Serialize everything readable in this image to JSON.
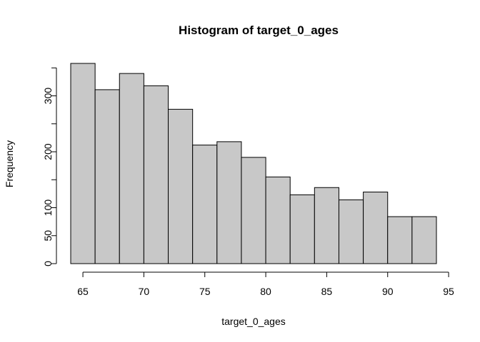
{
  "chart_data": {
    "type": "bar",
    "title": "Histogram of target_0_ages",
    "xlabel": "target_0_ages",
    "ylabel": "Frequency",
    "bins": [
      {
        "start": 64,
        "end": 66,
        "value": 358
      },
      {
        "start": 66,
        "end": 68,
        "value": 311
      },
      {
        "start": 68,
        "end": 70,
        "value": 340
      },
      {
        "start": 70,
        "end": 72,
        "value": 318
      },
      {
        "start": 72,
        "end": 74,
        "value": 276
      },
      {
        "start": 74,
        "end": 76,
        "value": 212
      },
      {
        "start": 76,
        "end": 78,
        "value": 218
      },
      {
        "start": 78,
        "end": 80,
        "value": 190
      },
      {
        "start": 80,
        "end": 82,
        "value": 155
      },
      {
        "start": 82,
        "end": 84,
        "value": 123
      },
      {
        "start": 84,
        "end": 86,
        "value": 136
      },
      {
        "start": 86,
        "end": 88,
        "value": 114
      },
      {
        "start": 88,
        "end": 90,
        "value": 128
      },
      {
        "start": 90,
        "end": 92,
        "value": 84
      },
      {
        "start": 92,
        "end": 94,
        "value": 84
      }
    ],
    "xlim": [
      64,
      95
    ],
    "ylim": [
      0,
      358
    ],
    "xticks": [
      "65",
      "70",
      "75",
      "80",
      "85",
      "90",
      "95"
    ],
    "yticks": [
      "0",
      "50",
      "100",
      "",
      "200",
      "",
      "300",
      ""
    ],
    "ytick_values": [
      0,
      50,
      100,
      150,
      200,
      250,
      300,
      350
    ],
    "bar_color": "#c8c8c8",
    "grid": false,
    "legend": "none"
  }
}
